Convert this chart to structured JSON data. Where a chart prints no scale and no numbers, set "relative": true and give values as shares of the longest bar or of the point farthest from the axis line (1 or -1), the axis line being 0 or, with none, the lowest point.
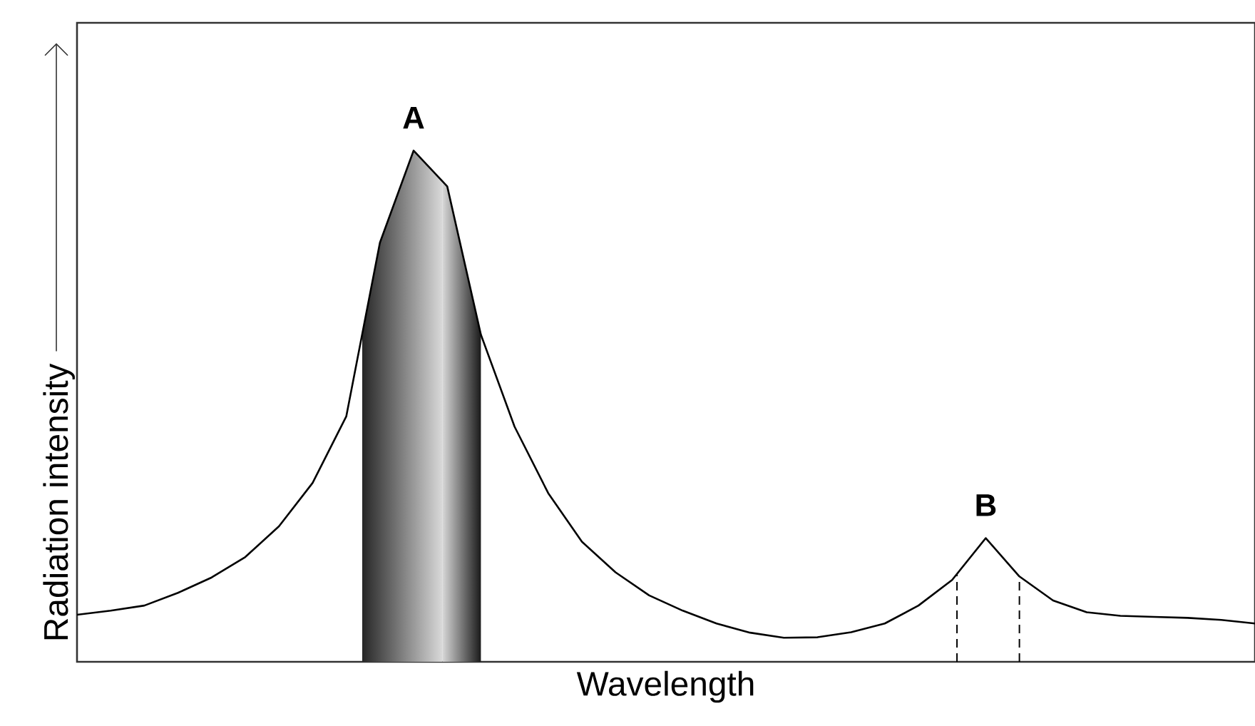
{
  "chart_data": {
    "type": "line",
    "relative": true,
    "xlabel": "Wavelength",
    "ylabel": "Radiation intensity",
    "categories": [
      null,
      null,
      null,
      null,
      null,
      null,
      null,
      null,
      null,
      null,
      null,
      null,
      null,
      null,
      null,
      null,
      null,
      null,
      null,
      null,
      null,
      null,
      null,
      null,
      null,
      null,
      null,
      null,
      null,
      null,
      null,
      null,
      null,
      null,
      null,
      null
    ],
    "series": [
      {
        "color": "#000000",
        "values": [
          0.092,
          0.1,
          0.11,
          0.135,
          0.165,
          0.205,
          0.265,
          0.35,
          0.48,
          0.82,
          1.0,
          0.93,
          0.64,
          0.46,
          0.33,
          0.235,
          0.175,
          0.13,
          0.1,
          0.075,
          0.057,
          0.047,
          0.048,
          0.058,
          0.075,
          0.11,
          0.16,
          0.242,
          0.167,
          0.12,
          0.097,
          0.09,
          0.088,
          0.086,
          0.082,
          0.075
        ]
      }
    ],
    "annotations": [
      {
        "text": "A",
        "y": 1.0
      },
      {
        "text": "B",
        "y": 0.242
      }
    ]
  }
}
